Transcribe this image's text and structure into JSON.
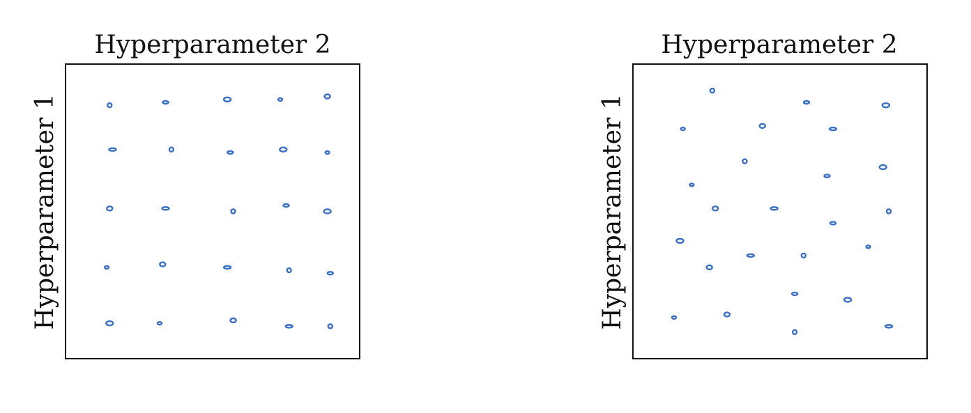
{
  "chart_data": [
    {
      "type": "scatter",
      "title": "Hyperparameter 2",
      "xlabel": "",
      "ylabel": "Hyperparameter 1",
      "xlim": [
        0,
        1
      ],
      "ylim": [
        0,
        1
      ],
      "grid": false,
      "marker_color": "#3a6fc4",
      "points": [
        {
          "x": 0.15,
          "y": 0.86
        },
        {
          "x": 0.34,
          "y": 0.87
        },
        {
          "x": 0.55,
          "y": 0.88
        },
        {
          "x": 0.73,
          "y": 0.88
        },
        {
          "x": 0.89,
          "y": 0.89
        },
        {
          "x": 0.16,
          "y": 0.71
        },
        {
          "x": 0.36,
          "y": 0.71
        },
        {
          "x": 0.56,
          "y": 0.7
        },
        {
          "x": 0.74,
          "y": 0.71
        },
        {
          "x": 0.89,
          "y": 0.7
        },
        {
          "x": 0.15,
          "y": 0.51
        },
        {
          "x": 0.34,
          "y": 0.51
        },
        {
          "x": 0.57,
          "y": 0.5
        },
        {
          "x": 0.75,
          "y": 0.52
        },
        {
          "x": 0.89,
          "y": 0.5
        },
        {
          "x": 0.14,
          "y": 0.31
        },
        {
          "x": 0.33,
          "y": 0.32
        },
        {
          "x": 0.55,
          "y": 0.31
        },
        {
          "x": 0.76,
          "y": 0.3
        },
        {
          "x": 0.9,
          "y": 0.29
        },
        {
          "x": 0.15,
          "y": 0.12
        },
        {
          "x": 0.32,
          "y": 0.12
        },
        {
          "x": 0.57,
          "y": 0.13
        },
        {
          "x": 0.76,
          "y": 0.11
        },
        {
          "x": 0.9,
          "y": 0.11
        }
      ]
    },
    {
      "type": "scatter",
      "title": "Hyperparameter 2",
      "xlabel": "",
      "ylabel": "Hyperparameter 1",
      "xlim": [
        0,
        1
      ],
      "ylim": [
        0,
        1
      ],
      "grid": false,
      "marker_color": "#3a6fc4",
      "points": [
        {
          "x": 0.27,
          "y": 0.91
        },
        {
          "x": 0.59,
          "y": 0.87
        },
        {
          "x": 0.86,
          "y": 0.86
        },
        {
          "x": 0.17,
          "y": 0.78
        },
        {
          "x": 0.44,
          "y": 0.79
        },
        {
          "x": 0.68,
          "y": 0.78
        },
        {
          "x": 0.38,
          "y": 0.67
        },
        {
          "x": 0.66,
          "y": 0.62
        },
        {
          "x": 0.85,
          "y": 0.65
        },
        {
          "x": 0.2,
          "y": 0.59
        },
        {
          "x": 0.28,
          "y": 0.51
        },
        {
          "x": 0.48,
          "y": 0.51
        },
        {
          "x": 0.87,
          "y": 0.5
        },
        {
          "x": 0.68,
          "y": 0.46
        },
        {
          "x": 0.16,
          "y": 0.4
        },
        {
          "x": 0.8,
          "y": 0.38
        },
        {
          "x": 0.26,
          "y": 0.31
        },
        {
          "x": 0.4,
          "y": 0.35
        },
        {
          "x": 0.58,
          "y": 0.35
        },
        {
          "x": 0.55,
          "y": 0.22
        },
        {
          "x": 0.73,
          "y": 0.2
        },
        {
          "x": 0.14,
          "y": 0.14
        },
        {
          "x": 0.32,
          "y": 0.15
        },
        {
          "x": 0.87,
          "y": 0.11
        },
        {
          "x": 0.55,
          "y": 0.09
        }
      ]
    }
  ]
}
